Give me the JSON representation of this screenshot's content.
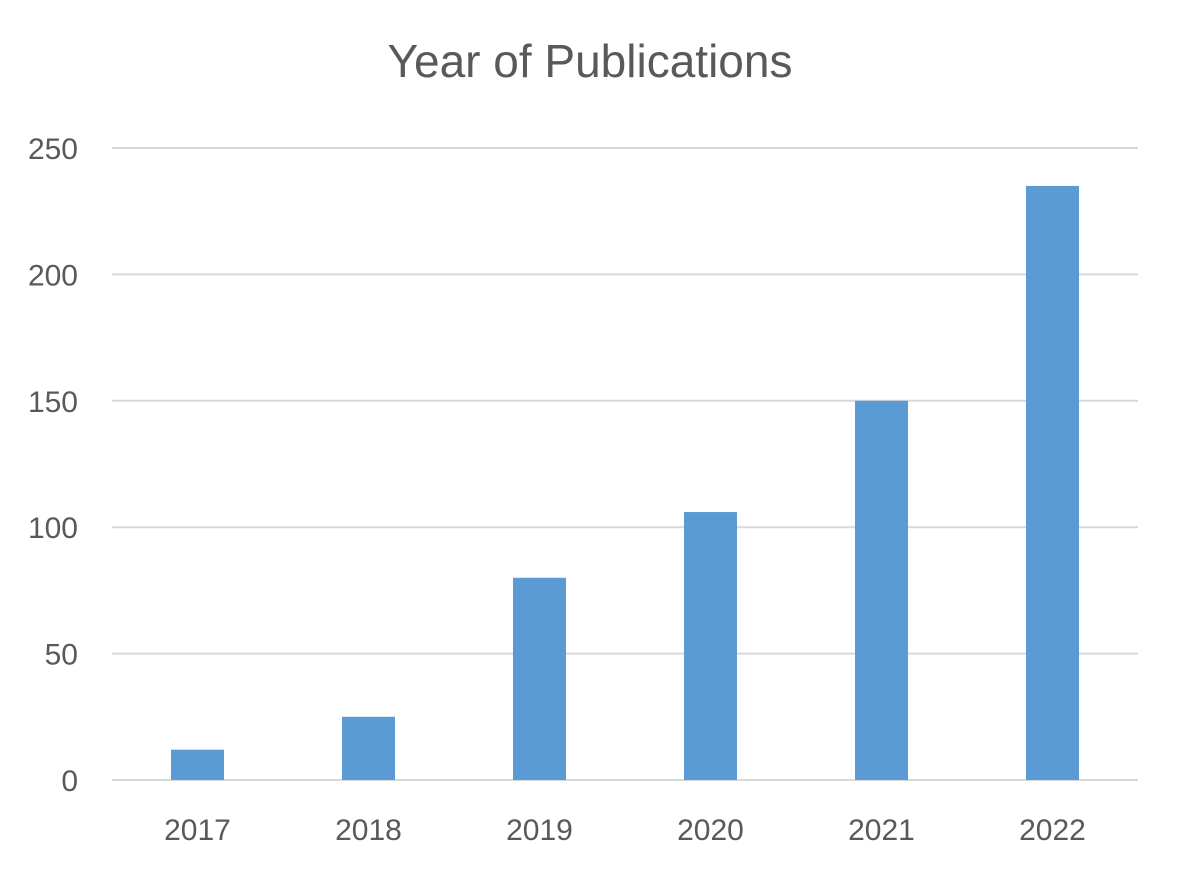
{
  "chart_data": {
    "type": "bar",
    "title": "Year of Publications",
    "categories": [
      "2017",
      "2018",
      "2019",
      "2020",
      "2021",
      "2022"
    ],
    "values": [
      12,
      25,
      80,
      106,
      150,
      235
    ],
    "xlabel": "",
    "ylabel": "",
    "ylim": [
      0,
      250
    ],
    "yticks": [
      0,
      50,
      100,
      150,
      200,
      250
    ],
    "grid": true,
    "legend": "none",
    "bar_color": "#5B9BD5"
  }
}
